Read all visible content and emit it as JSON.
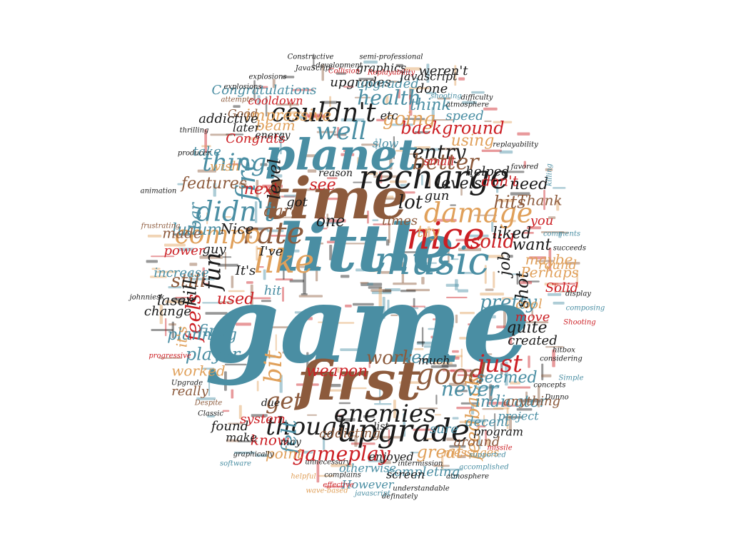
{
  "palette": {
    "teal": "#4a8ea3",
    "brown": "#8c5a3c",
    "red": "#cc1f24",
    "black": "#1a1a1a",
    "tan": "#e0a05a"
  },
  "words": [
    {
      "text": "game",
      "color": "teal"
    },
    {
      "text": "little",
      "color": "teal"
    },
    {
      "text": "time",
      "color": "brown"
    },
    {
      "text": "first",
      "color": "brown"
    },
    {
      "text": "planet",
      "color": "teal"
    },
    {
      "text": "music",
      "color": "teal"
    },
    {
      "text": "nice",
      "color": "red"
    },
    {
      "text": "recharge",
      "color": "black"
    },
    {
      "text": "like",
      "color": "tan"
    },
    {
      "text": "damage",
      "color": "tan"
    },
    {
      "text": "upgrade",
      "color": "black"
    },
    {
      "text": "good",
      "color": "brown"
    },
    {
      "text": "enemies",
      "color": "black"
    },
    {
      "text": "couldn't",
      "color": "black"
    },
    {
      "text": "didn't",
      "color": "teal"
    },
    {
      "text": "rate",
      "color": "brown"
    },
    {
      "text": "compo",
      "color": "tan"
    },
    {
      "text": "fire",
      "color": "teal"
    },
    {
      "text": "well",
      "color": "teal"
    },
    {
      "text": "things",
      "color": "teal"
    },
    {
      "text": "entry",
      "color": "black"
    },
    {
      "text": "just",
      "color": "red"
    },
    {
      "text": "though",
      "color": "black"
    },
    {
      "text": "bit",
      "color": "tan"
    },
    {
      "text": "fun",
      "color": "black"
    },
    {
      "text": "gameplay",
      "color": "red"
    },
    {
      "text": "feedback",
      "color": "tan"
    },
    {
      "text": "never",
      "color": "teal"
    },
    {
      "text": "solid",
      "color": "red"
    },
    {
      "text": "work",
      "color": "brown"
    },
    {
      "text": "get",
      "color": "brown"
    },
    {
      "text": "felt",
      "color": "teal"
    },
    {
      "text": "better",
      "color": "brown"
    },
    {
      "text": "health",
      "color": "teal"
    },
    {
      "text": "going",
      "color": "tan"
    },
    {
      "text": "background",
      "color": "red"
    },
    {
      "text": "lot",
      "color": "black"
    },
    {
      "text": "pretty",
      "color": "teal"
    },
    {
      "text": "shot",
      "color": "black"
    },
    {
      "text": "still",
      "color": "brown"
    },
    {
      "text": "feels",
      "color": "red"
    },
    {
      "text": "kill",
      "color": "black"
    },
    {
      "text": "player",
      "color": "teal"
    },
    {
      "text": "features",
      "color": "brown"
    },
    {
      "text": "weapon",
      "color": "red"
    },
    {
      "text": "learn",
      "color": "teal"
    },
    {
      "text": "great",
      "color": "tan"
    },
    {
      "text": "know",
      "color": "red"
    },
    {
      "text": "messages",
      "color": "tan"
    },
    {
      "text": "completing",
      "color": "teal"
    },
    {
      "text": "However",
      "color": "teal"
    },
    {
      "text": "otherwise",
      "color": "teal"
    },
    {
      "text": "addicting",
      "color": "brown"
    },
    {
      "text": "enjoyed",
      "color": "black"
    },
    {
      "text": "program",
      "color": "black"
    },
    {
      "text": "project",
      "color": "teal"
    },
    {
      "text": "decent",
      "color": "teal"
    },
    {
      "text": "around",
      "color": "brown"
    },
    {
      "text": "screen",
      "color": "black"
    },
    {
      "text": "point",
      "color": "tan"
    },
    {
      "text": "system",
      "color": "red"
    },
    {
      "text": "found",
      "color": "black"
    },
    {
      "text": "planning",
      "color": "teal"
    },
    {
      "text": "worked",
      "color": "tan"
    },
    {
      "text": "really",
      "color": "brown"
    },
    {
      "text": "indicator",
      "color": "teal"
    },
    {
      "text": "seemed",
      "color": "teal"
    },
    {
      "text": "anything",
      "color": "brown"
    },
    {
      "text": "created",
      "color": "black"
    },
    {
      "text": "quite",
      "color": "black"
    },
    {
      "text": "move",
      "color": "red"
    },
    {
      "text": "cool",
      "color": "tan"
    },
    {
      "text": "Solid",
      "color": "red"
    },
    {
      "text": "Perhaps",
      "color": "tan"
    },
    {
      "text": "maybe",
      "color": "tan"
    },
    {
      "text": "want",
      "color": "black"
    },
    {
      "text": "liked",
      "color": "black"
    },
    {
      "text": "job",
      "color": "black"
    },
    {
      "text": "Thank",
      "color": "brown"
    },
    {
      "text": "hits",
      "color": "brown"
    },
    {
      "text": "need",
      "color": "black"
    },
    {
      "text": "you",
      "color": "red"
    },
    {
      "text": "round",
      "color": "tan"
    },
    {
      "text": "gun",
      "color": "black"
    },
    {
      "text": "don't",
      "color": "red"
    },
    {
      "text": "see",
      "color": "red"
    },
    {
      "text": "next",
      "color": "red"
    },
    {
      "text": "dare",
      "color": "brown"
    },
    {
      "text": "got",
      "color": "black"
    },
    {
      "text": "one",
      "color": "black"
    },
    {
      "text": "times",
      "color": "brown"
    },
    {
      "text": "try",
      "color": "tan"
    },
    {
      "text": "ludum",
      "color": "teal"
    },
    {
      "text": "made",
      "color": "brown"
    },
    {
      "text": "Nice",
      "color": "black"
    },
    {
      "text": "guy",
      "color": "black"
    },
    {
      "text": "power",
      "color": "red"
    },
    {
      "text": "increase",
      "color": "teal"
    },
    {
      "text": "I've",
      "color": "black"
    },
    {
      "text": "It's",
      "color": "black"
    },
    {
      "text": "hit",
      "color": "teal"
    },
    {
      "text": "used",
      "color": "red"
    },
    {
      "text": "laser",
      "color": "black"
    },
    {
      "text": "change",
      "color": "black"
    },
    {
      "text": "find",
      "color": "teal"
    },
    {
      "text": "it's",
      "color": "tan"
    },
    {
      "text": "level",
      "color": "black"
    },
    {
      "text": "levels",
      "color": "black"
    },
    {
      "text": "helped",
      "color": "black"
    },
    {
      "text": "using",
      "color": "tan"
    },
    {
      "text": "speed",
      "color": "teal"
    },
    {
      "text": "think",
      "color": "teal"
    },
    {
      "text": "done",
      "color": "black"
    },
    {
      "text": "impressive",
      "color": "tan"
    },
    {
      "text": "upgrades",
      "color": "black"
    },
    {
      "text": "upgraded",
      "color": "teal"
    },
    {
      "text": "Javascript",
      "color": "black"
    },
    {
      "text": "weren't",
      "color": "black"
    },
    {
      "text": "graphics",
      "color": "black"
    },
    {
      "text": "Congratulations",
      "color": "teal"
    },
    {
      "text": "cooldown",
      "color": "red"
    },
    {
      "text": "beam",
      "color": "tan"
    },
    {
      "text": "Good",
      "color": "brown"
    },
    {
      "text": "addictive",
      "color": "black"
    },
    {
      "text": "later",
      "color": "black"
    },
    {
      "text": "Congrats",
      "color": "red"
    },
    {
      "text": "energy",
      "color": "black"
    },
    {
      "text": "take",
      "color": "teal"
    },
    {
      "text": "wish",
      "color": "tan"
    },
    {
      "text": "bar",
      "color": "teal"
    },
    {
      "text": "small",
      "color": "red"
    },
    {
      "text": "reason",
      "color": "black"
    },
    {
      "text": "etc",
      "color": "black"
    },
    {
      "text": "slow",
      "color": "teal"
    },
    {
      "text": "much",
      "color": "black"
    },
    {
      "text": "list",
      "color": "black"
    },
    {
      "text": "due",
      "color": "black"
    },
    {
      "text": "may",
      "color": "black"
    },
    {
      "text": "make",
      "color": "black"
    },
    {
      "text": "sure",
      "color": "teal"
    },
    {
      "text": "development",
      "color": "black"
    },
    {
      "text": "Constructive",
      "color": "black"
    },
    {
      "text": "JavaScript",
      "color": "black"
    },
    {
      "text": "Collision",
      "color": "red"
    },
    {
      "text": "explosions",
      "color": "black"
    },
    {
      "text": "semi-professional",
      "color": "black"
    },
    {
      "text": "Replayability",
      "color": "red"
    },
    {
      "text": "shooting",
      "color": "teal"
    },
    {
      "text": "atmosphere",
      "color": "black"
    },
    {
      "text": "difficulty",
      "color": "black"
    },
    {
      "text": "replayability",
      "color": "black"
    },
    {
      "text": "favored",
      "color": "black"
    },
    {
      "text": "killing",
      "color": "teal"
    },
    {
      "text": "comments",
      "color": "teal"
    },
    {
      "text": "succeeds",
      "color": "black"
    },
    {
      "text": "display",
      "color": "black"
    },
    {
      "text": "composing",
      "color": "teal"
    },
    {
      "text": "Shooting",
      "color": "red"
    },
    {
      "text": "hitbox",
      "color": "black"
    },
    {
      "text": "considering",
      "color": "black"
    },
    {
      "text": "concepts",
      "color": "black"
    },
    {
      "text": "Simple",
      "color": "teal"
    },
    {
      "text": "Dunno",
      "color": "black"
    },
    {
      "text": "missile",
      "color": "red"
    },
    {
      "text": "supported",
      "color": "teal"
    },
    {
      "text": "accomplished",
      "color": "teal"
    },
    {
      "text": "atmosphere",
      "color": "black"
    },
    {
      "text": "understandable",
      "color": "black"
    },
    {
      "text": "definately",
      "color": "black"
    },
    {
      "text": "javascript",
      "color": "teal"
    },
    {
      "text": "wave-based",
      "color": "tan"
    },
    {
      "text": "effective",
      "color": "red"
    },
    {
      "text": "intermission",
      "color": "black"
    },
    {
      "text": "unnecessary",
      "color": "black"
    },
    {
      "text": "complains",
      "color": "black"
    },
    {
      "text": "helpful",
      "color": "tan"
    },
    {
      "text": "graphically",
      "color": "black"
    },
    {
      "text": "software",
      "color": "teal"
    },
    {
      "text": "Classic",
      "color": "black"
    },
    {
      "text": "Despite",
      "color": "brown"
    },
    {
      "text": "Upgrade",
      "color": "black"
    },
    {
      "text": "progressive",
      "color": "red"
    },
    {
      "text": "johnniesk",
      "color": "black"
    },
    {
      "text": "animation",
      "color": "black"
    },
    {
      "text": "frustrating",
      "color": "brown"
    },
    {
      "text": "thrilling",
      "color": "black"
    },
    {
      "text": "producer",
      "color": "black"
    },
    {
      "text": "attempts",
      "color": "brown"
    },
    {
      "text": "explosions",
      "color": "black"
    }
  ]
}
